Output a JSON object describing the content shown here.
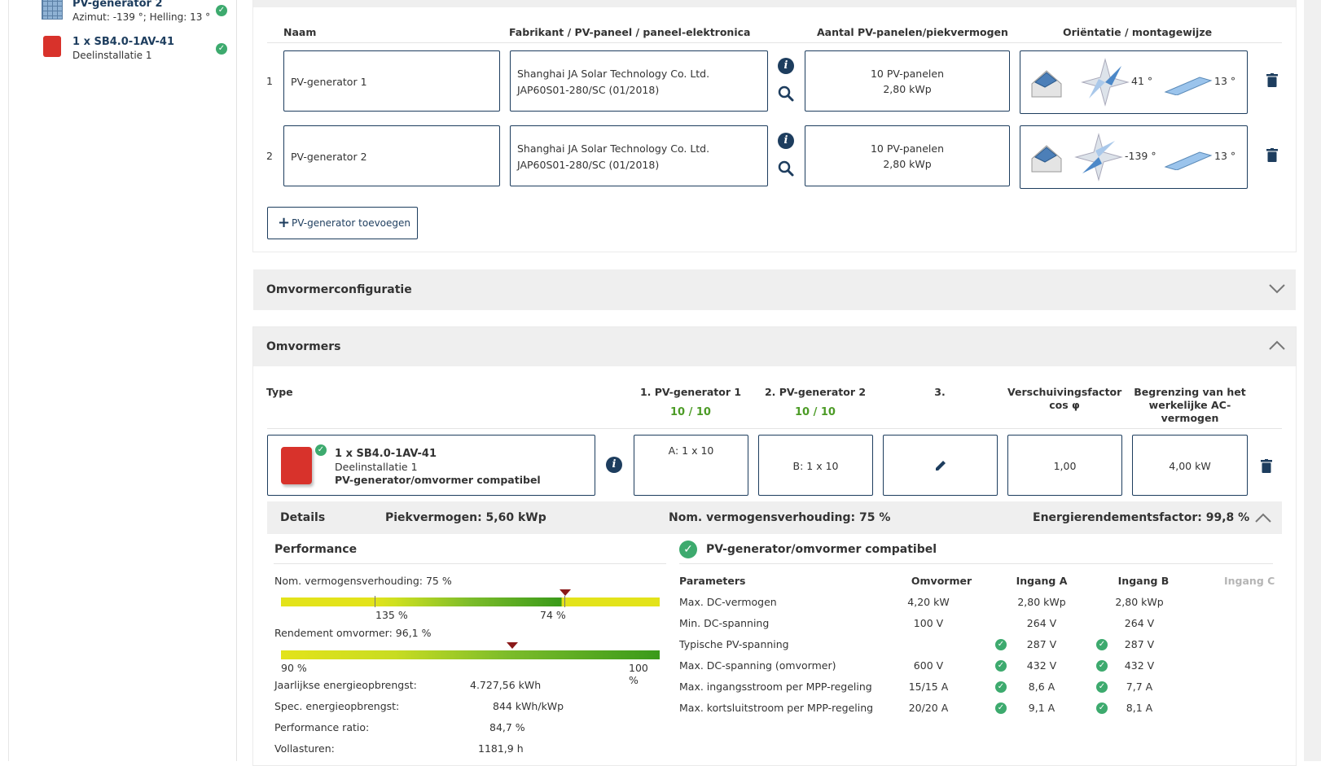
{
  "sidebar": {
    "items": [
      {
        "title": "PV-generator 2",
        "subtitle": "Azimut: -139 °; Helling: 13 °"
      },
      {
        "title": "1 x SB4.0-1AV-41",
        "subtitle": "Deelinstallatie 1"
      }
    ]
  },
  "pv_table": {
    "headers": {
      "name": "Naam",
      "manufacturer": "Fabrikant / PV-paneel / paneel-elektronica",
      "count": "Aantal PV-panelen/piekvermogen",
      "orientation": "Oriëntatie / montagewijze"
    },
    "rows": [
      {
        "index": "1",
        "name": "PV-generator 1",
        "manufacturer": "Shanghai JA Solar Technology Co. Ltd.",
        "model": "JAP60S01-280/SC (01/2018)",
        "panels": "10 PV-panelen",
        "power": "2,80 kWp",
        "azimuth": "41 °",
        "tilt": "13 °"
      },
      {
        "index": "2",
        "name": "PV-generator 2",
        "manufacturer": "Shanghai JA Solar Technology Co. Ltd.",
        "model": "JAP60S01-280/SC (01/2018)",
        "panels": "10 PV-panelen",
        "power": "2,80 kWp",
        "azimuth": "-139 °",
        "tilt": "13 °"
      }
    ],
    "add_button": "PV-generator toevoegen"
  },
  "sections": {
    "inverter_config": "Omvormerconfiguratie",
    "inverters": "Omvormers"
  },
  "inverter_table": {
    "headers": {
      "type": "Type",
      "gen1": "1. PV-generator 1",
      "gen1_count": "10 / 10",
      "gen2": "2. PV-generator 2",
      "gen2_count": "10 / 10",
      "gen3": "3.",
      "cosphi_line1": "Verschuivingsfactor",
      "cosphi_line2": "cos φ",
      "limit_line1": "Begrenzing van het",
      "limit_line2": "werkelijke AC-",
      "limit_line3": "vermogen"
    },
    "row": {
      "title": "1 x SB4.0-1AV-41",
      "subtitle": "Deelinstallatie 1",
      "status": "PV-generator/omvormer compatibel",
      "input_a": "A: 1 x 10",
      "input_b": "B: 1 x 10",
      "cosphi": "1,00",
      "limit": "4,00 kW"
    }
  },
  "details": {
    "label": "Details",
    "peak": "Piekvermogen: 5,60 kWp",
    "ratio": "Nom. vermogensverhouding: 75 %",
    "efficiency_factor": "Energierendementsfactor: 99,8 %"
  },
  "performance": {
    "title": "Performance",
    "ratio_label": "Nom. vermogensverhouding: 75 %",
    "ratio_scale_left": "135 %",
    "ratio_scale_right": "74 %",
    "ratio_marker": 0.75,
    "efficiency_label": "Rendement omvormer: 96,1 %",
    "efficiency_scale_left": "90 %",
    "efficiency_scale_right": "100 %",
    "efficiency_marker": 0.61,
    "stats": [
      {
        "label": "Jaarlijkse energieopbrengst:",
        "value": "4.727,56 kWh"
      },
      {
        "label": "Spec. energieopbrengst:",
        "value": "844 kWh/kWp"
      },
      {
        "label": "Performance ratio:",
        "value": "84,7 %"
      },
      {
        "label": "Vollasturen:",
        "value": "1181,9 h"
      }
    ]
  },
  "compat": {
    "title": "PV-generator/omvormer compatibel",
    "headers": [
      "Parameters",
      "Omvormer",
      "Ingang A",
      "Ingang B",
      "Ingang C"
    ],
    "rows": [
      {
        "param": "Max. DC-vermogen",
        "inv": "4,20 kW",
        "a": "2,80 kWp",
        "b": "2,80 kWp",
        "check": false
      },
      {
        "param": "Min. DC-spanning",
        "inv": "100 V",
        "a": "264 V",
        "b": "264 V",
        "check": false
      },
      {
        "param": "Typische PV-spanning",
        "inv": "",
        "a": "287 V",
        "b": "287 V",
        "check": true
      },
      {
        "param": "Max. DC-spanning (omvormer)",
        "inv": "600 V",
        "a": "432 V",
        "b": "432 V",
        "check": true
      },
      {
        "param": "Max. ingangsstroom per MPP-regeling",
        "inv": "15/15 A",
        "a": "8,6 A",
        "b": "7,7 A",
        "check": true
      },
      {
        "param": "Max. kortsluitstroom per MPP-regeling",
        "inv": "20/20 A",
        "a": "9,1 A",
        "b": "8,1 A",
        "check": true
      }
    ]
  },
  "colors": {
    "navy": "#1d3d5e",
    "green": "#4c9b26",
    "check": "#3daa6e",
    "marker": "#8b1a1a"
  }
}
